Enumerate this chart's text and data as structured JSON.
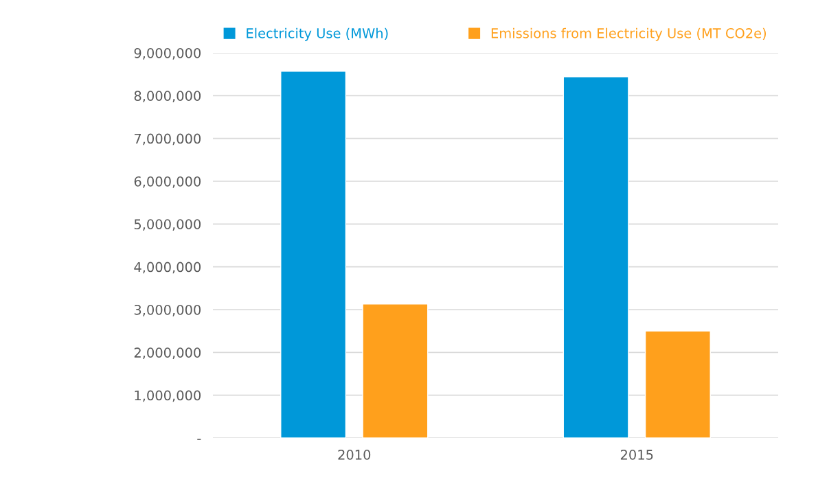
{
  "chart_data": {
    "type": "bar",
    "categories": [
      "2010",
      "2015"
    ],
    "series": [
      {
        "name": "Electricity Use (MWh)",
        "color": "#0098d9",
        "values": [
          8570000,
          8440000
        ]
      },
      {
        "name": "Emissions from Electricity Use (MT CO2e)",
        "color": "#ffa01c",
        "values": [
          3130000,
          2500000
        ]
      }
    ],
    "ylim": [
      0,
      9000000
    ],
    "yticks": [
      {
        "value": 0,
        "label": "-"
      },
      {
        "value": 1000000,
        "label": "1,000,000"
      },
      {
        "value": 2000000,
        "label": "2,000,000"
      },
      {
        "value": 3000000,
        "label": "3,000,000"
      },
      {
        "value": 4000000,
        "label": "4,000,000"
      },
      {
        "value": 5000000,
        "label": "5,000,000"
      },
      {
        "value": 6000000,
        "label": "6,000,000"
      },
      {
        "value": 7000000,
        "label": "7,000,000"
      },
      {
        "value": 8000000,
        "label": "8,000,000"
      },
      {
        "value": 9000000,
        "label": "9,000,000"
      }
    ],
    "grid": "y",
    "legend": "top"
  }
}
